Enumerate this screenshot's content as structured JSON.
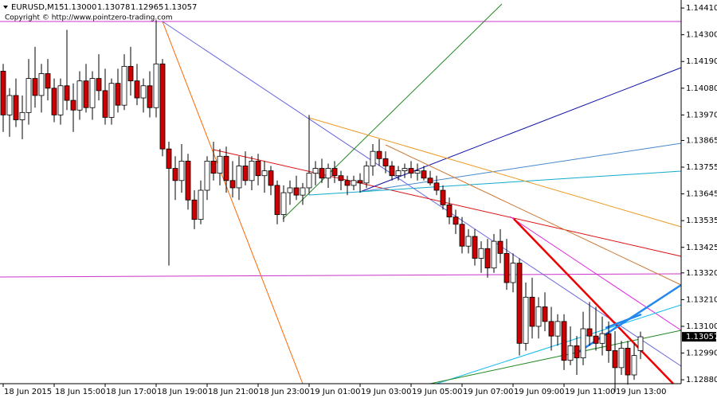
{
  "chart_data": {
    "type": "candlestick",
    "symbol": "EURUSD,M15",
    "header_values": [
      1.13,
      1.13078,
      1.12965,
      1.13057
    ],
    "header_labels": [
      "1.13000",
      "1.13078",
      "1.12965",
      "1.13057"
    ],
    "copyright": "Copyright © http://www.pointzero-trading.com",
    "current_price": 1.13057,
    "current_price_label": "1.13057",
    "up_color": "#ffffff",
    "down_color": "#cc0000",
    "outline_color": "#000000",
    "ylim": [
      1.12864,
      1.14443
    ],
    "yticks": [
      {
        "value": 1.1441,
        "label": "1.14410"
      },
      {
        "value": 1.143,
        "label": "1.14300"
      },
      {
        "value": 1.1419,
        "label": "1.14190"
      },
      {
        "value": 1.1408,
        "label": "1.14080"
      },
      {
        "value": 1.1397,
        "label": "1.13970"
      },
      {
        "value": 1.13865,
        "label": "1.13865"
      },
      {
        "value": 1.13755,
        "label": "1.13755"
      },
      {
        "value": 1.13645,
        "label": "1.13645"
      },
      {
        "value": 1.13535,
        "label": "1.13535"
      },
      {
        "value": 1.13425,
        "label": "1.13425"
      },
      {
        "value": 1.1332,
        "label": "1.13320"
      },
      {
        "value": 1.1321,
        "label": "1.13210"
      },
      {
        "value": 1.131,
        "label": "1.13100"
      },
      {
        "value": 1.1299,
        "label": "1.12990"
      },
      {
        "value": 1.1288,
        "label": "1.12880"
      }
    ],
    "categories": [
      "18 Jun 2015",
      null,
      null,
      null,
      null,
      null,
      null,
      null,
      "18 Jun 15:00",
      null,
      null,
      null,
      null,
      null,
      null,
      null,
      "18 Jun 17:00",
      null,
      null,
      null,
      null,
      null,
      null,
      null,
      "18 Jun 19:00",
      null,
      null,
      null,
      null,
      null,
      null,
      null,
      "18 Jun 21:00",
      null,
      null,
      null,
      null,
      null,
      null,
      null,
      "18 Jun 23:00",
      null,
      null,
      null,
      null,
      null,
      null,
      null,
      "19 Jun 01:00",
      null,
      null,
      null,
      null,
      null,
      null,
      null,
      "19 Jun 03:00",
      null,
      null,
      null,
      null,
      null,
      null,
      null,
      "19 Jun 05:00",
      null,
      null,
      null,
      null,
      null,
      null,
      null,
      "19 Jun 07:00",
      null,
      null,
      null,
      null,
      null,
      null,
      null,
      "19 Jun 09:00",
      null,
      null,
      null,
      null,
      null,
      null,
      null,
      "19 Jun 11:00",
      null,
      null,
      null,
      null,
      null,
      null,
      null,
      "19 Jun 13:00",
      null,
      null,
      null,
      null
    ],
    "open": [
      1.1415,
      1.1397,
      1.1405,
      1.1395,
      1.1398,
      1.1412,
      1.1405,
      1.1414,
      1.1408,
      1.1397,
      1.1409,
      1.1403,
      1.1399,
      1.1411,
      1.14,
      1.1412,
      1.1407,
      1.1396,
      1.141,
      1.1401,
      1.1417,
      1.1411,
      1.1404,
      1.1409,
      1.14,
      1.1418,
      1.1383,
      1.1375,
      1.137,
      1.1378,
      1.1362,
      1.1354,
      1.1366,
      1.1378,
      1.1373,
      1.138,
      1.137,
      1.1367,
      1.1376,
      1.137,
      1.1378,
      1.1372,
      1.1374,
      1.1368,
      1.1356,
      1.1365,
      1.1367,
      1.1364,
      1.1367,
      1.1373,
      1.1375,
      1.1371,
      1.1375,
      1.1372,
      1.137,
      1.1368,
      1.137,
      1.1369,
      1.1376,
      1.1382,
      1.1379,
      1.1376,
      1.1372,
      1.1374,
      1.1375,
      1.1373,
      1.1374,
      1.1371,
      1.1369,
      1.1366,
      1.136,
      1.1355,
      1.1352,
      1.1343,
      1.1347,
      1.1338,
      1.1342,
      1.1334,
      1.1345,
      1.134,
      1.1328,
      1.1336,
      1.1303,
      1.1322,
      1.131,
      1.1318,
      1.1312,
      1.1306,
      1.1312,
      1.1296,
      1.1302,
      1.1297,
      1.1309,
      1.1306,
      1.1303,
      1.1307,
      1.13,
      1.1293,
      1.1301,
      1.129,
      1.13
    ],
    "high": [
      1.1418,
      1.1408,
      1.1412,
      1.1405,
      1.142,
      1.1425,
      1.1418,
      1.142,
      1.1412,
      1.1412,
      1.1432,
      1.141,
      1.1415,
      1.1418,
      1.1415,
      1.1422,
      1.1416,
      1.1412,
      1.1416,
      1.1422,
      1.1425,
      1.1418,
      1.1412,
      1.1415,
      1.1436,
      1.142,
      1.1386,
      1.138,
      1.1385,
      1.1381,
      1.1366,
      1.137,
      1.138,
      1.1386,
      1.1383,
      1.1384,
      1.1378,
      1.138,
      1.1382,
      1.138,
      1.1381,
      1.1378,
      1.1376,
      1.137,
      1.1368,
      1.137,
      1.1372,
      1.1369,
      1.1397,
      1.1378,
      1.1379,
      1.1377,
      1.1378,
      1.1374,
      1.1372,
      1.1372,
      1.1373,
      1.1378,
      1.1385,
      1.1387,
      1.1382,
      1.1378,
      1.1376,
      1.1377,
      1.1378,
      1.1377,
      1.1376,
      1.1374,
      1.1372,
      1.1368,
      1.1363,
      1.1358,
      1.1355,
      1.135,
      1.135,
      1.1345,
      1.1346,
      1.1348,
      1.135,
      1.1346,
      1.134,
      1.1338,
      1.1328,
      1.133,
      1.1322,
      1.1324,
      1.1318,
      1.1315,
      1.1315,
      1.131,
      1.1306,
      1.1316,
      1.132,
      1.1318,
      1.1314,
      1.1312,
      1.1308,
      1.1304,
      1.1304,
      1.1303,
      1.13078
    ],
    "low": [
      1.139,
      1.1388,
      1.1392,
      1.1387,
      1.1393,
      1.14,
      1.1398,
      1.1403,
      1.1394,
      1.1393,
      1.1399,
      1.139,
      1.1395,
      1.1398,
      1.1395,
      1.1403,
      1.1393,
      1.1393,
      1.1398,
      1.1399,
      1.1405,
      1.1401,
      1.1398,
      1.1396,
      1.1396,
      1.138,
      1.1335,
      1.1362,
      1.1365,
      1.1358,
      1.135,
      1.1352,
      1.1362,
      1.137,
      1.1368,
      1.1365,
      1.1363,
      1.1362,
      1.1368,
      1.1366,
      1.1368,
      1.1365,
      1.1364,
      1.1352,
      1.1353,
      1.136,
      1.1362,
      1.136,
      1.1365,
      1.1368,
      1.1369,
      1.1367,
      1.1369,
      1.1366,
      1.1364,
      1.1366,
      1.1365,
      1.1367,
      1.1372,
      1.1376,
      1.1373,
      1.137,
      1.137,
      1.1371,
      1.1371,
      1.137,
      1.137,
      1.1368,
      1.1364,
      1.1358,
      1.1352,
      1.1348,
      1.134,
      1.134,
      1.1335,
      1.1332,
      1.133,
      1.1332,
      1.1336,
      1.1325,
      1.1324,
      1.1298,
      1.13,
      1.1305,
      1.1305,
      1.1308,
      1.13,
      1.1302,
      1.1292,
      1.1294,
      1.129,
      1.1294,
      1.1302,
      1.13,
      1.1298,
      1.1295,
      1.1283,
      1.129,
      1.1286,
      1.1288,
      1.12965
    ],
    "close": [
      1.1397,
      1.1405,
      1.1395,
      1.1398,
      1.1412,
      1.1405,
      1.1414,
      1.1408,
      1.1397,
      1.1409,
      1.1403,
      1.1399,
      1.1411,
      1.14,
      1.1412,
      1.1407,
      1.1396,
      1.141,
      1.1401,
      1.1417,
      1.1411,
      1.1404,
      1.1409,
      1.14,
      1.1418,
      1.1383,
      1.1375,
      1.137,
      1.1378,
      1.1362,
      1.1354,
      1.1366,
      1.1378,
      1.1373,
      1.138,
      1.137,
      1.1367,
      1.1376,
      1.137,
      1.1378,
      1.1372,
      1.1374,
      1.1368,
      1.1356,
      1.1365,
      1.1367,
      1.1364,
      1.1367,
      1.1373,
      1.1375,
      1.1371,
      1.1375,
      1.1372,
      1.137,
      1.1368,
      1.137,
      1.1369,
      1.1376,
      1.1382,
      1.1379,
      1.1376,
      1.1372,
      1.1374,
      1.1375,
      1.1373,
      1.1374,
      1.1371,
      1.1369,
      1.1366,
      1.136,
      1.1355,
      1.1352,
      1.1343,
      1.1347,
      1.1338,
      1.1342,
      1.1334,
      1.1345,
      1.134,
      1.1328,
      1.1336,
      1.1303,
      1.1322,
      1.131,
      1.1318,
      1.1312,
      1.1306,
      1.1312,
      1.1296,
      1.1302,
      1.1297,
      1.1309,
      1.1306,
      1.1303,
      1.1307,
      1.13,
      1.1293,
      1.1301,
      1.129,
      1.1298,
      1.13057
    ]
  }
}
